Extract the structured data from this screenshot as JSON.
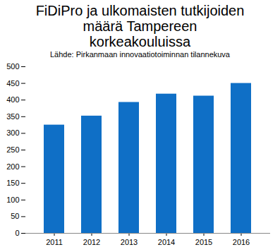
{
  "chart_data": {
    "type": "bar",
    "title": "FiDiPro ja ulkomaisten tutkijoiden määrä Tampereen korkeakouluissa",
    "subtitle": "Lähde: Pirkanmaan innovaatiotoiminnan tilannekuva",
    "categories": [
      "2011",
      "2012",
      "2013",
      "2014",
      "2015",
      "2016"
    ],
    "values": [
      325,
      352,
      393,
      418,
      412,
      450
    ],
    "color": "#0f6fc6",
    "ylim": [
      0,
      500
    ],
    "yticks": [
      0,
      50,
      100,
      150,
      200,
      250,
      300,
      350,
      400,
      450,
      500
    ],
    "grid": false
  }
}
